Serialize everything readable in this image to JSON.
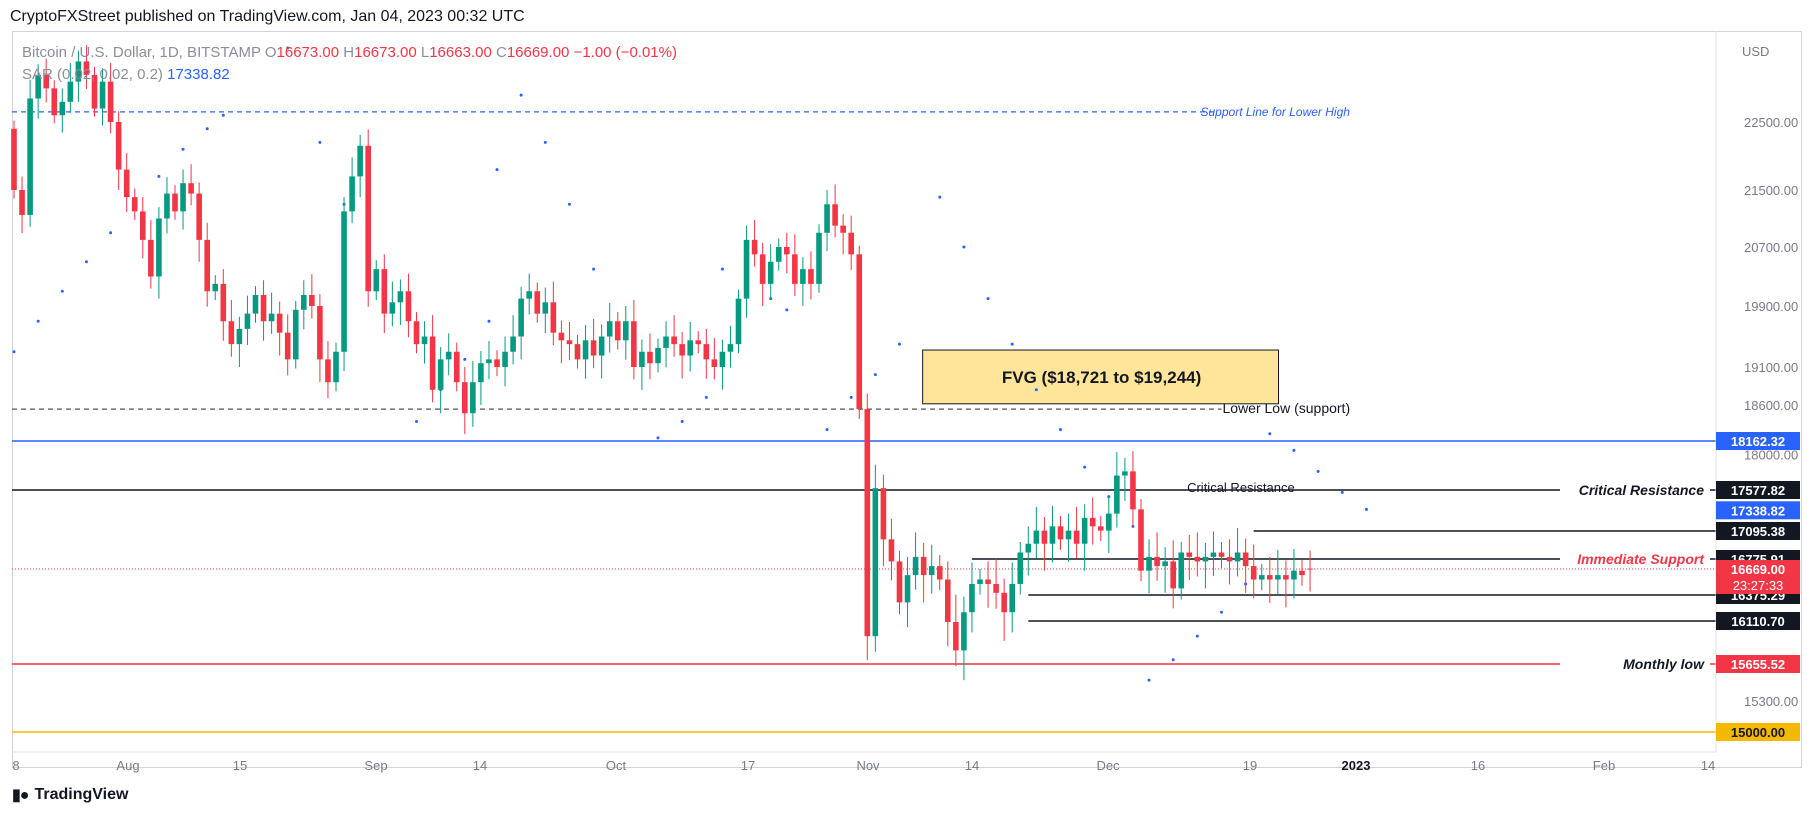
{
  "header": {
    "published": "CryptoFXStreet published on TradingView.com, Jan 04, 2023 00:32 UTC"
  },
  "legend": {
    "symbol": "Bitcoin / U.S. Dollar, 1D, BITSTAMP",
    "o_label": "O",
    "o": "16673.00",
    "h_label": "H",
    "h": "16673.00",
    "l_label": "L",
    "l": "16663.00",
    "c_label": "C",
    "c": "16669.00",
    "change": "−1.00 (−0.01%)",
    "indicator": "SAR (0.02, 0.02, 0.2)",
    "indicator_value": "17338.82"
  },
  "footer": {
    "brand": "TradingView"
  },
  "colors": {
    "up": "#089981",
    "down": "#f23645",
    "sar": "#2962ff",
    "fvg_fill": "#ffe599",
    "level_blue": "#2962ff",
    "level_red": "#f23645",
    "level_yellow": "#f5b800",
    "axis_text": "#787b86"
  },
  "chart_data": {
    "type": "candlestick",
    "symbol": "Bitcoin / U.S. Dollar, 1D, BITSTAMP",
    "price_unit": "USD",
    "ylim": [
      14800,
      23300
    ],
    "x_ticks": [
      "8",
      "Aug",
      "15",
      "Sep",
      "14",
      "Oct",
      "17",
      "Nov",
      "14",
      "Dec",
      "19",
      "2023",
      "16",
      "Feb",
      "14"
    ],
    "y_ticks": [
      "22500.00",
      "21500.00",
      "20700.00",
      "19900.00",
      "19100.00",
      "18600.00",
      "18000.00",
      "15300.00"
    ],
    "start_date": "2022-07-29",
    "series_close": [
      21500,
      21150,
      22850,
      23200,
      23000,
      22600,
      22800,
      23100,
      23400,
      23200,
      22700,
      23100,
      22500,
      21800,
      21400,
      21200,
      20800,
      20300,
      21100,
      21450,
      21200,
      21600,
      21450,
      20800,
      20100,
      20200,
      19700,
      19400,
      19600,
      19800,
      20050,
      19700,
      19800,
      19550,
      19200,
      19850,
      20050,
      19900,
      19200,
      18900,
      19300,
      21200,
      21700,
      22150,
      20100,
      20400,
      19800,
      19950,
      20100,
      19700,
      19400,
      19500,
      18800,
      19200,
      19300,
      18900,
      18500,
      18900,
      19150,
      19200,
      19100,
      19300,
      19500,
      20000,
      20100,
      19800,
      19950,
      19550,
      19450,
      19400,
      19200,
      19450,
      19250,
      19500,
      19700,
      19450,
      19700,
      19100,
      19300,
      19150,
      19350,
      19500,
      19400,
      19250,
      19450,
      19400,
      19200,
      19100,
      19300,
      19400,
      20000,
      20800,
      20600,
      20200,
      20500,
      20700,
      20600,
      20200,
      20400,
      20200,
      20900,
      21300,
      21000,
      20900,
      20600,
      18550,
      15950,
      17600,
      17000,
      16750,
      16300,
      16600,
      16800,
      16600,
      16700,
      16550,
      16100,
      15800,
      16200,
      16500,
      16550,
      16500,
      16400,
      16200,
      16500,
      16850,
      16950,
      17100,
      16950,
      17150,
      17000,
      17100,
      16950,
      17250,
      17150,
      17100,
      17300,
      17750,
      17800,
      17350,
      16650,
      16800,
      16700,
      16750,
      16450,
      16850,
      16800,
      16750,
      16800,
      16850,
      16800,
      16750,
      16850,
      16700,
      16550,
      16600,
      16550,
      16600,
      16550,
      16650,
      16600,
      16669
    ],
    "series_open": [
      22400,
      21500,
      21150,
      22850,
      23200,
      23000,
      22600,
      22800,
      23100,
      23400,
      23200,
      22700,
      23100,
      22500,
      21800,
      21400,
      21200,
      20800,
      20300,
      21100,
      21450,
      21200,
      21600,
      21450,
      20800,
      20100,
      20200,
      19700,
      19400,
      19600,
      19800,
      20050,
      19700,
      19800,
      19550,
      19200,
      19850,
      20050,
      19900,
      19200,
      18900,
      19300,
      21200,
      21700,
      22150,
      20100,
      20400,
      19800,
      19950,
      20100,
      19700,
      19400,
      19500,
      18800,
      19200,
      19300,
      18900,
      18500,
      18900,
      19150,
      19200,
      19100,
      19300,
      19500,
      20000,
      20100,
      19800,
      19950,
      19550,
      19450,
      19400,
      19200,
      19450,
      19250,
      19500,
      19700,
      19450,
      19700,
      19100,
      19300,
      19150,
      19350,
      19500,
      19400,
      19250,
      19450,
      19400,
      19200,
      19100,
      19300,
      19400,
      20000,
      20800,
      20600,
      20200,
      20500,
      20700,
      20600,
      20200,
      20400,
      20200,
      20900,
      21300,
      21000,
      20900,
      20600,
      18550,
      15950,
      17600,
      17000,
      16750,
      16300,
      16600,
      16800,
      16600,
      16700,
      16550,
      16100,
      15800,
      16200,
      16500,
      16550,
      16500,
      16400,
      16200,
      16500,
      16850,
      16950,
      17100,
      16950,
      17150,
      17000,
      17100,
      16950,
      17250,
      17150,
      17100,
      17300,
      17750,
      17800,
      17350,
      16650,
      16800,
      16700,
      16750,
      16450,
      16850,
      16800,
      16750,
      16800,
      16850,
      16800,
      16750,
      16850,
      16700,
      16550,
      16600,
      16550,
      16600,
      16550,
      16650,
      16673
    ],
    "sar_points": [
      {
        "d": 0,
        "v": 19300
      },
      {
        "d": 3,
        "v": 19700
      },
      {
        "d": 6,
        "v": 20100
      },
      {
        "d": 9,
        "v": 20500
      },
      {
        "d": 12,
        "v": 20900
      },
      {
        "d": 15,
        "v": 21300
      },
      {
        "d": 18,
        "v": 21700
      },
      {
        "d": 21,
        "v": 22100
      },
      {
        "d": 24,
        "v": 22400
      },
      {
        "d": 26,
        "v": 22600
      },
      {
        "d": 34,
        "v": 23600
      },
      {
        "d": 38,
        "v": 22200
      },
      {
        "d": 41,
        "v": 21300
      },
      {
        "d": 44,
        "v": 20600
      },
      {
        "d": 47,
        "v": 19900
      },
      {
        "d": 50,
        "v": 18400
      },
      {
        "d": 53,
        "v": 18800
      },
      {
        "d": 56,
        "v": 19200
      },
      {
        "d": 59,
        "v": 19700
      },
      {
        "d": 60,
        "v": 21800
      },
      {
        "d": 63,
        "v": 22900
      },
      {
        "d": 66,
        "v": 22200
      },
      {
        "d": 69,
        "v": 21300
      },
      {
        "d": 72,
        "v": 20400
      },
      {
        "d": 75,
        "v": 19600
      },
      {
        "d": 80,
        "v": 18200
      },
      {
        "d": 83,
        "v": 18400
      },
      {
        "d": 86,
        "v": 18700
      },
      {
        "d": 88,
        "v": 20400
      },
      {
        "d": 91,
        "v": 20200
      },
      {
        "d": 94,
        "v": 20000
      },
      {
        "d": 96,
        "v": 19850
      },
      {
        "d": 101,
        "v": 18300
      },
      {
        "d": 104,
        "v": 18700
      },
      {
        "d": 107,
        "v": 19000
      },
      {
        "d": 110,
        "v": 19400
      },
      {
        "d": 115,
        "v": 21400
      },
      {
        "d": 118,
        "v": 20700
      },
      {
        "d": 121,
        "v": 20000
      },
      {
        "d": 124,
        "v": 19400
      },
      {
        "d": 127,
        "v": 18800
      },
      {
        "d": 130,
        "v": 18300
      },
      {
        "d": 133,
        "v": 17850
      },
      {
        "d": 136,
        "v": 17500
      },
      {
        "d": 139,
        "v": 17150
      },
      {
        "d": 141,
        "v": 15500
      },
      {
        "d": 144,
        "v": 15700
      },
      {
        "d": 147,
        "v": 15950
      },
      {
        "d": 150,
        "v": 16200
      },
      {
        "d": 153,
        "v": 16500
      },
      {
        "d": 156,
        "v": 18250
      },
      {
        "d": 159,
        "v": 18050
      },
      {
        "d": 162,
        "v": 17800
      },
      {
        "d": 165,
        "v": 17550
      },
      {
        "d": 168,
        "v": 17350
      }
    ],
    "fvg": {
      "label": "FVG ($18,721 to $19,244)",
      "low": 18721,
      "high": 19244,
      "from_day": 113,
      "to_day": 150
    },
    "levels": [
      {
        "name": "Support Line for Lower High",
        "price": 22650,
        "style": "dashed",
        "color": "#2962ff",
        "from_day": 0,
        "to_day": 149,
        "label": "Support Line for Lower High",
        "label_day": 150
      },
      {
        "name": "Lower Low (support)",
        "price": 18550,
        "style": "dashed",
        "color": "#555555",
        "from_day": 0,
        "to_day": 150,
        "label": "Lower Low (support)",
        "label_day": 150
      },
      {
        "name": "18162.32",
        "price": 18162.32,
        "style": "solid",
        "color": "#2962ff",
        "from_day": 0,
        "to_day": "axis",
        "price_label": "18162.32",
        "badge": "#2962ff"
      },
      {
        "name": "Critical Resistance",
        "price": 17577.82,
        "style": "solid",
        "color": "#131722",
        "from_day": 0,
        "to_day": "axis",
        "label": "Critical Resistance",
        "price_label": "17577.82",
        "badge": "#131722"
      },
      {
        "name": "17095.38",
        "price": 17095.38,
        "style": "solid",
        "color": "#131722",
        "from_day": 154,
        "to_day": "axis",
        "price_label": "17095.38",
        "badge": "#131722"
      },
      {
        "name": "Immediate Support",
        "price": 16775.91,
        "style": "solid",
        "color": "#131722",
        "from_day": 119,
        "to_day": "axis",
        "label": "Immediate Support",
        "label_color": "#f23645",
        "price_label": "16775.91",
        "badge": "#131722"
      },
      {
        "name": "16375.29",
        "price": 16375.29,
        "style": "solid",
        "color": "#131722",
        "from_day": 126,
        "to_day": "axis",
        "price_label": "16375.29",
        "badge": "#131722"
      },
      {
        "name": "16110.70",
        "price": 16110.7,
        "style": "solid",
        "color": "#131722",
        "from_day": 126,
        "to_day": "axis",
        "price_label": "16110.70",
        "badge": "#131722"
      },
      {
        "name": "Monthly low",
        "price": 15655.52,
        "style": "solid",
        "color": "#f23645",
        "from_day": 0,
        "to_day": "axis",
        "label": "Monthly low",
        "price_label": "15655.52",
        "badge": "#f23645"
      },
      {
        "name": "15000.00",
        "price": 15000,
        "style": "solid",
        "color": "#f5b800",
        "from_day": 0,
        "to_day": "axis",
        "price_label": "15000.00",
        "badge": "#f5b800"
      }
    ],
    "annotations": [
      {
        "text": "Critical Resistance",
        "price": 17590,
        "day": 142,
        "style": "on-chart"
      }
    ],
    "current": {
      "price": 16669,
      "price_label": "16669.00",
      "countdown": "23:27:33",
      "badge": "#f23645"
    },
    "sar_badge": {
      "price": 17338.82,
      "price_label": "17338.82",
      "badge": "#2962ff"
    }
  }
}
